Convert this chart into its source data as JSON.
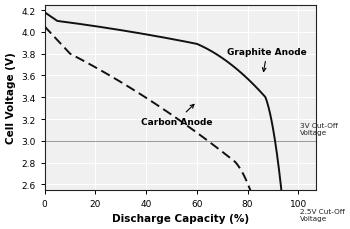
{
  "title": "",
  "xlabel": "Discharge Capacity (%)",
  "ylabel": "Cell Voltage (V)",
  "xlim": [
    0,
    107
  ],
  "ylim": [
    2.55,
    4.25
  ],
  "xticks": [
    0,
    20,
    40,
    60,
    80,
    100
  ],
  "yticks": [
    2.6,
    2.8,
    3.0,
    3.2,
    3.4,
    3.6,
    3.8,
    4.0,
    4.2
  ],
  "cutoff_3v": 3.0,
  "cutoff_25v": 2.5,
  "graphite_label": "Graphite Anode",
  "carbon_label": "Carbon Anode",
  "cutoff3_label": "3V Cut-Off\nVoltage",
  "cutoff25_label": "2.5V Cut-Off\nVoltage",
  "line_color": "#111111",
  "bg_color": "#f0f0f0",
  "grid_color": "#ffffff"
}
